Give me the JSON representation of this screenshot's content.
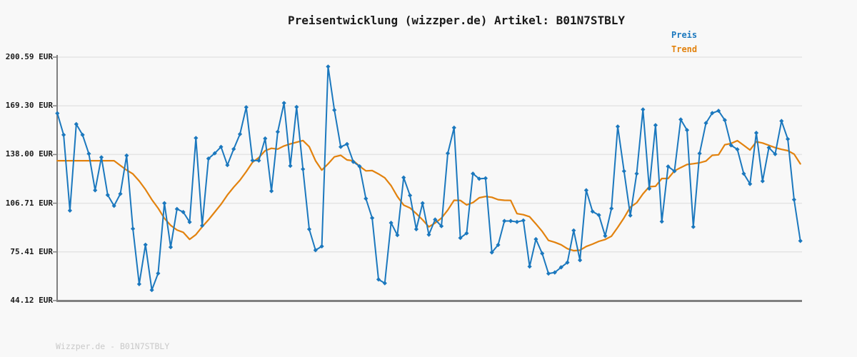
{
  "title": "Preisentwicklung (wizzper.de) Artikel: B01N7STBLY",
  "legend": {
    "preis_label": "Preis",
    "trend_label": "Trend"
  },
  "footer": "Wizzper.de - B01N7STBLY",
  "colors": {
    "preis": "#1b78be",
    "trend": "#e2820e",
    "axis": "#808080",
    "grid": "#e4e4e4",
    "background": "#f8f8f8",
    "tick_label": "#1a1a1a",
    "footer_text": "#c9c9c9"
  },
  "y_axis": {
    "tick_labels": [
      "200.59 EUR",
      "169.30 EUR",
      "138.00 EUR",
      "106.71 EUR",
      "75.41 EUR",
      "44.12 EUR"
    ],
    "tick_values": [
      200.59,
      169.3,
      138.0,
      106.71,
      75.41,
      44.12
    ],
    "unit": "EUR"
  },
  "chart_data": {
    "type": "line",
    "title": "Preisentwicklung (wizzper.de) Artikel: B01N7STBLY",
    "xlabel": "",
    "ylabel": "",
    "ylim": [
      44.12,
      200.59
    ],
    "grid": true,
    "legend_position": "top-right",
    "x": "time index 0..118 (no x tick labels shown)",
    "series": [
      {
        "name": "Preis",
        "marker": "diamond",
        "values": [
          164.5,
          150.6,
          102.0,
          157.5,
          150.6,
          138.5,
          115.0,
          136.2,
          112.0,
          105.0,
          112.7,
          137.3,
          90.3,
          54.7,
          80.0,
          50.9,
          61.6,
          106.7,
          78.5,
          103.0,
          101.0,
          94.6,
          148.6,
          92.3,
          135.4,
          138.8,
          142.9,
          131.2,
          141.5,
          151.1,
          168.4,
          134.2,
          134.1,
          148.3,
          114.5,
          152.6,
          171.1,
          130.7,
          168.5,
          128.6,
          90.0,
          76.5,
          79.0,
          194.5,
          166.6,
          142.9,
          144.7,
          133.3,
          130.4,
          109.7,
          97.2,
          57.7,
          55.3,
          94.1,
          86.2,
          123.2,
          111.7,
          90.0,
          106.7,
          86.5,
          96.2,
          92.0,
          138.8,
          155.2,
          84.4,
          87.4,
          125.7,
          122.4,
          122.7,
          75.1,
          79.9,
          95.3,
          95.3,
          94.7,
          95.6,
          66.0,
          83.6,
          74.4,
          61.5,
          62.2,
          65.5,
          68.6,
          89.2,
          70.1,
          115.0,
          101.4,
          99.1,
          85.7,
          103.3,
          156.0,
          127.3,
          98.8,
          125.7,
          166.9,
          116.1,
          156.8,
          94.9,
          130.3,
          127.3,
          160.5,
          153.7,
          91.5,
          138.7,
          158.2,
          164.6,
          166.1,
          160.1,
          143.9,
          141.3,
          125.7,
          119.1,
          151.9,
          120.9,
          142.4,
          138.3,
          159.5,
          147.9,
          109.0,
          82.5
        ]
      },
      {
        "name": "Trend",
        "marker": "none",
        "values": [
          134.0,
          134.0,
          134.0,
          134.0,
          134.0,
          134.0,
          134.0,
          134.0,
          134.0,
          134.0,
          131.0,
          128.0,
          125.5,
          121.0,
          115.5,
          109.0,
          103.5,
          97.0,
          92.5,
          89.5,
          88.0,
          83.5,
          86.5,
          91.5,
          96.0,
          101.0,
          106.0,
          112.0,
          117.0,
          121.5,
          127.0,
          133.0,
          136.0,
          140.5,
          142.0,
          141.5,
          143.5,
          144.8,
          145.9,
          147.0,
          143.0,
          134.0,
          128.0,
          132.0,
          136.5,
          137.5,
          134.5,
          134.0,
          130.5,
          127.5,
          127.7,
          125.5,
          123.0,
          118.0,
          111.0,
          105.5,
          103.7,
          100.0,
          96.0,
          91.5,
          94.0,
          97.1,
          102.3,
          108.6,
          108.5,
          105.6,
          107.1,
          110.2,
          111.0,
          110.5,
          109.0,
          108.6,
          108.5,
          100.0,
          99.3,
          98.0,
          93.4,
          88.6,
          82.8,
          81.6,
          80.0,
          77.5,
          76.2,
          76.5,
          78.9,
          80.4,
          82.2,
          83.4,
          85.5,
          91.2,
          97.3,
          104.2,
          107.0,
          112.7,
          117.3,
          117.6,
          122.6,
          122.6,
          127.5,
          129.6,
          131.6,
          132.1,
          132.7,
          133.8,
          137.5,
          137.8,
          144.3,
          145.1,
          146.9,
          143.9,
          140.9,
          146.2,
          145.4,
          143.9,
          142.4,
          141.3,
          140.5,
          138.3,
          132.0
        ]
      }
    ]
  }
}
